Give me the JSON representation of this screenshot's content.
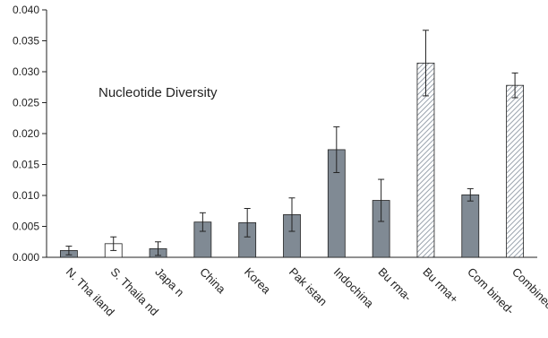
{
  "chart_data": {
    "type": "bar",
    "annotation": "Nucleotide Diversity",
    "categories": [
      "N. Tha iland",
      "S. Thaila nd",
      "Japa n",
      "China",
      "Korea",
      "Pak istan",
      "Indochina",
      "Bu rma-",
      "Bu rma+",
      "Com bined-",
      "Combined+"
    ],
    "values": [
      0.0011,
      0.0022,
      0.0014,
      0.0057,
      0.0056,
      0.0069,
      0.0174,
      0.0092,
      0.0314,
      0.0101,
      0.0278
    ],
    "errors": [
      0.0007,
      0.0011,
      0.0011,
      0.0015,
      0.0023,
      0.0027,
      0.0037,
      0.0034,
      0.0053,
      0.001,
      0.002
    ],
    "fills": [
      "gray",
      "white",
      "gray",
      "gray",
      "gray",
      "gray",
      "gray",
      "gray",
      "hatched",
      "gray",
      "hatched"
    ],
    "ylim": [
      0,
      0.04
    ],
    "yticks": [
      "0.000",
      "0.005",
      "0.010",
      "0.015",
      "0.020",
      "0.025",
      "0.030",
      "0.035",
      "0.040"
    ],
    "colors": {
      "gray": "#808a94",
      "white": "#ffffff",
      "hatch": "#9aa3ad",
      "outline": "#222222"
    },
    "grid": false,
    "legend": "none"
  }
}
